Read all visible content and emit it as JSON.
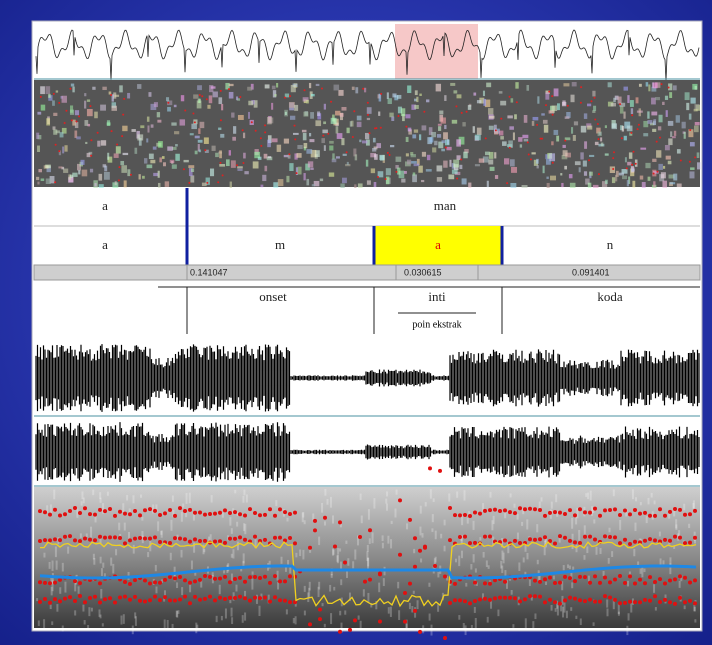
{
  "tier1": {
    "labels": [
      "a",
      "man"
    ]
  },
  "tier2": {
    "labels": [
      "a",
      "m",
      "a",
      "n"
    ]
  },
  "durations": [
    "0.141047",
    "0.030615",
    "0.091401"
  ],
  "annotations": {
    "labels": [
      "onset",
      "inti",
      "koda"
    ],
    "note": "poin ekstrak"
  }
}
